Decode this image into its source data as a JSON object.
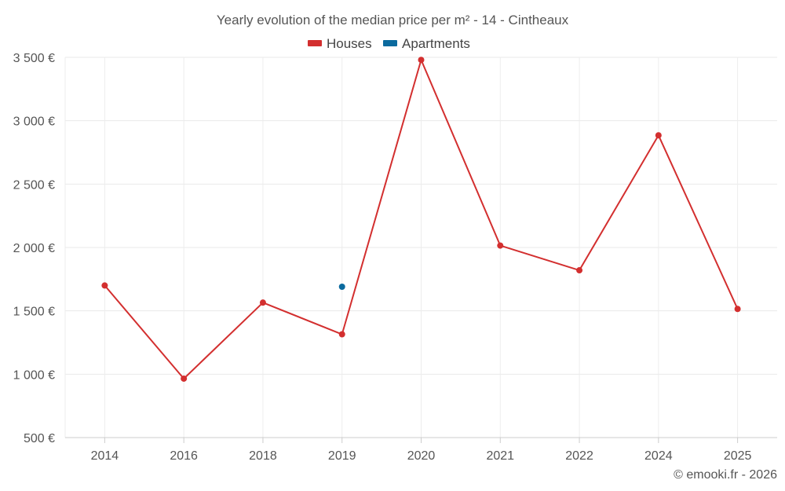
{
  "chart_data": {
    "type": "line",
    "title": "Yearly evolution of the median price per m² - 14 - Cintheaux",
    "categories": [
      "2014",
      "2016",
      "2018",
      "2019",
      "2020",
      "2021",
      "2022",
      "2024",
      "2025"
    ],
    "series": [
      {
        "name": "Houses",
        "color": "#d32f2f",
        "values": [
          1700,
          965,
          1565,
          1315,
          3480,
          2015,
          1820,
          2885,
          1515
        ]
      },
      {
        "name": "Apartments",
        "color": "#0b6a9e",
        "values": [
          null,
          null,
          null,
          1690,
          null,
          null,
          null,
          null,
          null
        ]
      }
    ],
    "y_ticks": [
      500,
      1000,
      1500,
      2000,
      2500,
      3000,
      3500
    ],
    "y_tick_labels": [
      "500 €",
      "1 000 €",
      "1 500 €",
      "2 000 €",
      "2 500 €",
      "3 000 €",
      "3 500 €"
    ],
    "ylim": [
      500,
      3500
    ],
    "xlabel": "",
    "ylabel": "",
    "legend_position": "top-center",
    "grid": true
  },
  "credit": "© emooki.fr - 2026"
}
